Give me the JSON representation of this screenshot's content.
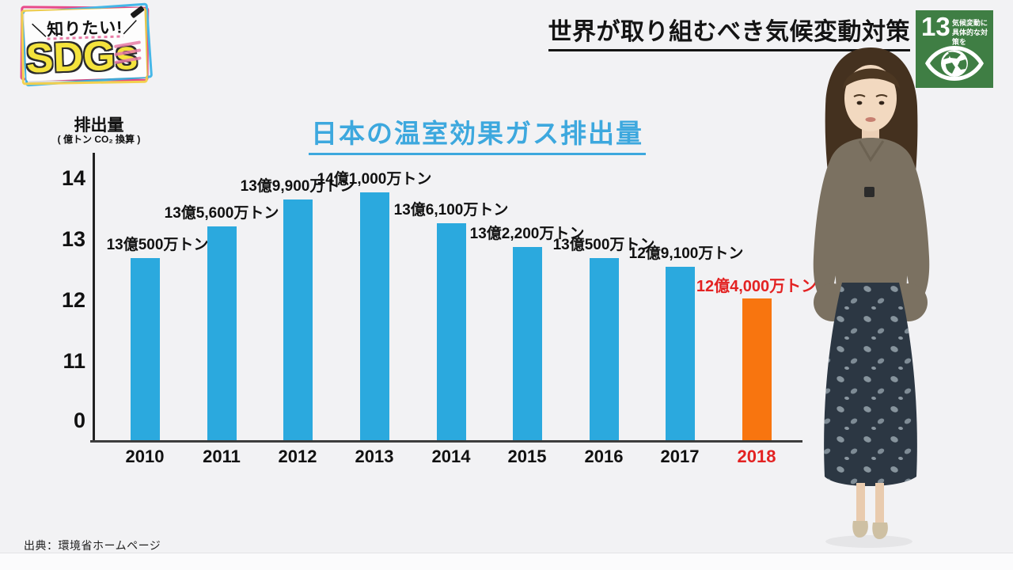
{
  "logo": {
    "tagline": "知りたい!",
    "title": "SDGs"
  },
  "header": {
    "title": "世界が取り組むべき気候変動対策"
  },
  "sdg_badge": {
    "number": "13",
    "line1": "気候変動に",
    "line2": "具体的な対策を"
  },
  "chart_data": {
    "type": "bar",
    "title": "日本の温室効果ガス排出量",
    "ylabel": "排出量",
    "ylabel_unit": "( 億トン CO₂ 換算 )",
    "yticks": [
      14,
      13,
      12,
      11,
      0
    ],
    "axis_break": true,
    "categories": [
      "2010",
      "2011",
      "2012",
      "2013",
      "2014",
      "2015",
      "2016",
      "2017",
      "2018"
    ],
    "values": [
      13.05,
      13.56,
      13.99,
      14.1,
      13.61,
      13.22,
      13.05,
      12.91,
      12.4
    ],
    "value_labels": [
      "13億500万トン",
      "13億5,600万トン",
      "13億9,900万トン",
      "14億1,000万トン",
      "13億6,100万トン",
      "13億2,200万トン",
      "13億500万トン",
      "12億9,100万トン",
      "12億4,000万トン"
    ],
    "highlight_index": 8,
    "colors": {
      "bar": "#2BA9DE",
      "highlight_bar": "#F8750F",
      "highlight_text": "#E32222",
      "title": "#3DA8DE",
      "axis_text": "#111111"
    },
    "legend": null,
    "grid": false
  },
  "source": {
    "text": "出典：環境省ホームページ"
  }
}
